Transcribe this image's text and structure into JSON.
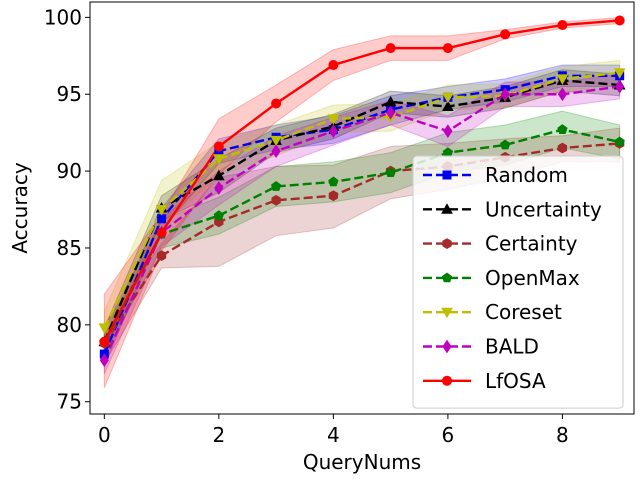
{
  "chart_data": {
    "type": "line",
    "title": "",
    "xlabel": "QueryNums",
    "ylabel": "Accuracy",
    "xlim": [
      -0.25,
      9.25
    ],
    "ylim": [
      74.2,
      101.0
    ],
    "xticks": [
      0,
      2,
      4,
      6,
      8
    ],
    "xtick_labels": [
      "0",
      "2",
      "4",
      "6",
      "8"
    ],
    "yticks": [
      75,
      80,
      85,
      90,
      95,
      100
    ],
    "ytick_labels": [
      "75",
      "80",
      "85",
      "90",
      "95",
      "100"
    ],
    "x": [
      0,
      1,
      2,
      3,
      4,
      5,
      6,
      7,
      8,
      9
    ],
    "legend_position": "lower-right",
    "series": [
      {
        "name": "Random",
        "color": "#0000ee",
        "marker": "square",
        "linestyle": "dashed",
        "values": [
          78.1,
          86.9,
          91.3,
          92.2,
          92.7,
          94.0,
          94.8,
          95.3,
          96.2,
          96.2
        ],
        "lower": [
          77.3,
          86.2,
          90.5,
          91.4,
          91.8,
          93.0,
          94.0,
          94.5,
          95.5,
          95.5
        ],
        "upper": [
          78.9,
          87.6,
          92.1,
          93.0,
          93.6,
          94.9,
          95.5,
          96.0,
          96.9,
          96.9
        ]
      },
      {
        "name": "Uncertainty",
        "color": "#000000",
        "marker": "triangle-up",
        "linestyle": "dashed",
        "values": [
          78.9,
          87.6,
          89.7,
          92.0,
          92.9,
          94.5,
          94.2,
          94.8,
          95.9,
          95.6
        ],
        "lower": [
          78.0,
          86.8,
          88.6,
          91.2,
          92.1,
          93.8,
          93.5,
          94.1,
          95.2,
          94.9
        ],
        "upper": [
          79.8,
          88.4,
          90.8,
          92.8,
          93.7,
          95.2,
          94.9,
          95.5,
          96.6,
          96.3
        ]
      },
      {
        "name": "Certainty",
        "color": "#a52a2a",
        "marker": "hexagon",
        "linestyle": "dashed",
        "values": [
          78.8,
          84.5,
          86.7,
          88.1,
          88.4,
          90.0,
          90.3,
          90.9,
          91.5,
          91.8
        ],
        "lower": [
          77.5,
          83.7,
          83.8,
          85.8,
          86.3,
          88.2,
          88.8,
          89.6,
          90.6,
          90.6
        ],
        "upper": [
          80.0,
          85.3,
          89.6,
          90.3,
          90.4,
          91.6,
          91.8,
          92.1,
          92.3,
          92.8
        ]
      },
      {
        "name": "OpenMax",
        "color": "#008000",
        "marker": "pentagon",
        "linestyle": "dashed",
        "values": [
          78.9,
          85.9,
          87.1,
          89.0,
          89.3,
          89.9,
          91.2,
          91.7,
          92.7,
          91.9
        ],
        "lower": [
          78.0,
          85.0,
          85.9,
          87.7,
          88.0,
          88.6,
          89.9,
          90.4,
          91.5,
          90.8
        ],
        "upper": [
          79.8,
          86.8,
          88.3,
          90.3,
          90.6,
          91.2,
          92.5,
          93.0,
          93.9,
          93.0
        ]
      },
      {
        "name": "Coreset",
        "color": "#bfbf00",
        "marker": "triangle-down",
        "linestyle": "dashed",
        "values": [
          79.8,
          87.5,
          90.8,
          92.0,
          93.4,
          93.5,
          94.8,
          94.9,
          96.0,
          96.4
        ],
        "lower": [
          78.7,
          86.4,
          89.7,
          91.0,
          92.5,
          92.6,
          94.0,
          94.1,
          95.2,
          95.6
        ],
        "upper": [
          80.9,
          89.4,
          91.9,
          93.0,
          94.3,
          94.4,
          95.6,
          95.7,
          96.8,
          97.2
        ]
      },
      {
        "name": "BALD",
        "color": "#bf00bf",
        "marker": "diamond",
        "linestyle": "dashed",
        "values": [
          77.7,
          86.0,
          88.9,
          91.3,
          92.6,
          93.8,
          92.6,
          95.0,
          95.0,
          95.5
        ],
        "lower": [
          76.8,
          85.1,
          87.8,
          90.3,
          91.7,
          93.0,
          91.6,
          94.2,
          94.2,
          94.7
        ],
        "upper": [
          78.6,
          86.9,
          90.0,
          92.3,
          93.5,
          94.6,
          93.6,
          95.8,
          95.8,
          96.3
        ]
      },
      {
        "name": "LfOSA",
        "color": "#ff0000",
        "marker": "circle",
        "linestyle": "solid",
        "values": [
          78.9,
          86.0,
          91.6,
          94.4,
          96.9,
          98.0,
          98.0,
          98.9,
          99.5,
          99.8
        ],
        "lower": [
          75.9,
          84.8,
          89.8,
          93.2,
          95.9,
          97.2,
          97.2,
          98.6,
          99.3,
          99.6
        ],
        "upper": [
          82.0,
          87.2,
          93.4,
          95.6,
          97.9,
          98.8,
          98.8,
          99.2,
          99.7,
          100.0
        ]
      }
    ]
  }
}
